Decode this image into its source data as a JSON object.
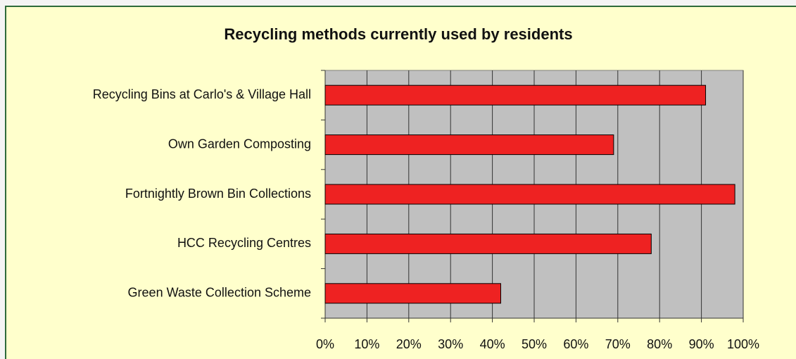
{
  "chart_data": {
    "type": "bar",
    "orientation": "horizontal",
    "title": "Recycling methods currently used by residents",
    "categories": [
      "Recycling Bins at Carlo's & Village Hall",
      "Own Garden Composting",
      "Fortnightly Brown Bin Collections",
      "HCC Recycling Centres",
      "Green Waste Collection Scheme"
    ],
    "values": [
      91,
      69,
      98,
      78,
      42
    ],
    "color": "#ee2222",
    "xlim": [
      0,
      100
    ],
    "xticks": [
      {
        "value": 0,
        "label": "0%"
      },
      {
        "value": 10,
        "label": "10%"
      },
      {
        "value": 20,
        "label": "20%"
      },
      {
        "value": 30,
        "label": "30%"
      },
      {
        "value": 40,
        "label": "40%"
      },
      {
        "value": 50,
        "label": "50%"
      },
      {
        "value": 60,
        "label": "60%"
      },
      {
        "value": 70,
        "label": "70%"
      },
      {
        "value": 80,
        "label": "80%"
      },
      {
        "value": 90,
        "label": "90%"
      },
      {
        "value": 100,
        "label": "100%"
      }
    ],
    "grid": true
  }
}
